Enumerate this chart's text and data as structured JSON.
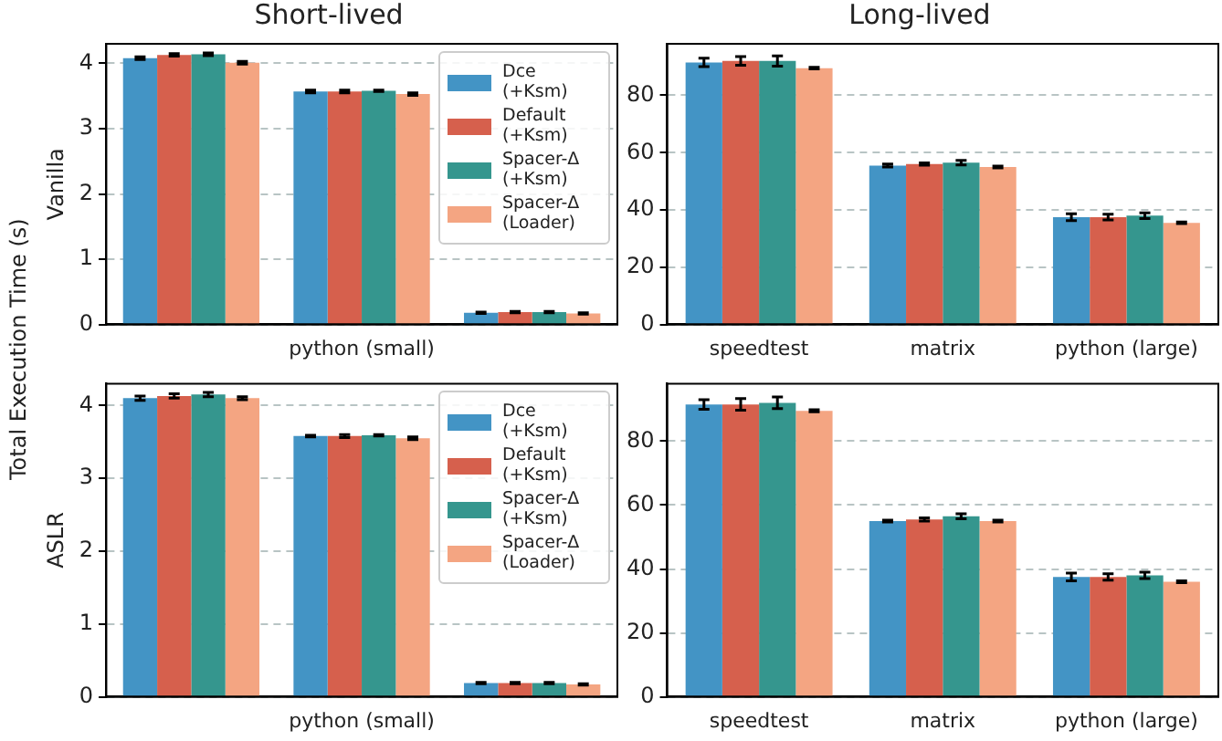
{
  "chart_data": [
    {
      "type": "bar",
      "title": "Short-lived",
      "ylabel": "Vanilla",
      "annotations": [
        "Total Execution Time (s)"
      ],
      "categories": [
        null,
        "python (small)",
        null
      ],
      "ylim": [
        0,
        4.3
      ],
      "yticks": [
        0,
        1,
        2,
        3,
        4
      ],
      "grid": "y",
      "legend": "top right",
      "series": [
        {
          "name": "Dce (+Ksm)",
          "color": "#4394c5",
          "values": [
            4.08,
            3.57,
            0.18
          ],
          "errors": [
            0.02,
            0.02,
            0.01
          ]
        },
        {
          "name": "Default (+Ksm)",
          "color": "#d6604d",
          "values": [
            4.13,
            3.57,
            0.19
          ],
          "errors": [
            0.02,
            0.02,
            0.01
          ]
        },
        {
          "name": "Spacer-Δ (+Ksm)",
          "color": "#35968e",
          "values": [
            4.14,
            3.58,
            0.19
          ],
          "errors": [
            0.02,
            0.01,
            0.01
          ]
        },
        {
          "name": "Spacer-Δ (Loader)",
          "color": "#f4a582",
          "values": [
            4.01,
            3.53,
            0.17
          ],
          "errors": [
            0.02,
            0.02,
            0.01
          ]
        }
      ]
    },
    {
      "type": "bar",
      "title": "Long-lived",
      "categories": [
        "speedtest",
        "matrix",
        "python (large)"
      ],
      "ylim": [
        0,
        98
      ],
      "yticks": [
        0,
        20,
        40,
        60,
        80
      ],
      "grid": "y",
      "series": [
        {
          "color": "#4394c5",
          "values": [
            91.5,
            55.5,
            37.5
          ],
          "errors": [
            1.5,
            0.5,
            1.2
          ]
        },
        {
          "color": "#d6604d",
          "values": [
            92,
            56,
            37.5
          ],
          "errors": [
            1.5,
            0.4,
            1.0
          ]
        },
        {
          "color": "#35968e",
          "values": [
            92,
            56.5,
            38
          ],
          "errors": [
            1.8,
            0.8,
            1.0
          ]
        },
        {
          "color": "#f4a582",
          "values": [
            89.5,
            55,
            35.5
          ],
          "errors": [
            0.3,
            0.3,
            0.3
          ]
        }
      ]
    },
    {
      "type": "bar",
      "ylabel": "ASLR",
      "categories": [
        null,
        "python (small)",
        null
      ],
      "ylim": [
        0,
        4.3
      ],
      "yticks": [
        0,
        1,
        2,
        3,
        4
      ],
      "grid": "y",
      "legend": "top right",
      "series": [
        {
          "name": "Dce (+Ksm)",
          "color": "#4394c5",
          "values": [
            4.1,
            3.58,
            0.19
          ],
          "errors": [
            0.03,
            0.01,
            0.01
          ]
        },
        {
          "name": "Default (+Ksm)",
          "color": "#d6604d",
          "values": [
            4.13,
            3.58,
            0.19
          ],
          "errors": [
            0.03,
            0.02,
            0.01
          ]
        },
        {
          "name": "Spacer-Δ (+Ksm)",
          "color": "#35968e",
          "values": [
            4.15,
            3.59,
            0.19
          ],
          "errors": [
            0.03,
            0.01,
            0.01
          ]
        },
        {
          "name": "Spacer-Δ (Loader)",
          "color": "#f4a582",
          "values": [
            4.1,
            3.55,
            0.17
          ],
          "errors": [
            0.02,
            0.02,
            0.01
          ]
        }
      ]
    },
    {
      "type": "bar",
      "categories": [
        "speedtest",
        "matrix",
        "python (large)"
      ],
      "ylim": [
        0,
        98
      ],
      "yticks": [
        0,
        20,
        40,
        60,
        80
      ],
      "grid": "y",
      "series": [
        {
          "color": "#4394c5",
          "values": [
            91.5,
            55,
            37.5
          ],
          "errors": [
            1.5,
            0.3,
            1.2
          ]
        },
        {
          "color": "#d6604d",
          "values": [
            91.5,
            55.5,
            37.5
          ],
          "errors": [
            1.8,
            0.5,
            1.0
          ]
        },
        {
          "color": "#35968e",
          "values": [
            92,
            56.5,
            38
          ],
          "errors": [
            1.8,
            0.8,
            1.0
          ]
        },
        {
          "color": "#f4a582",
          "values": [
            89.5,
            55,
            36
          ],
          "errors": [
            0.3,
            0.3,
            0.3
          ]
        }
      ]
    }
  ]
}
